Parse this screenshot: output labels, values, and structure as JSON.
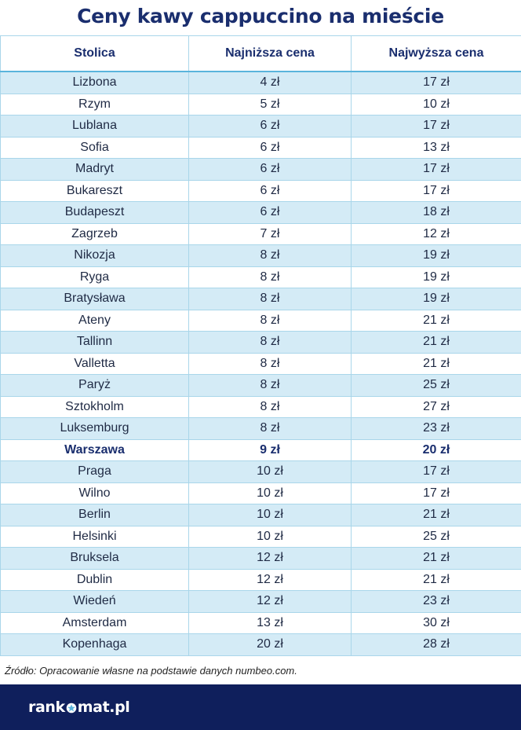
{
  "title": "Ceny kawy cappuccino na mieście",
  "table": {
    "headers": [
      "Stolica",
      "Najniższa cena",
      "Najwyższa cena"
    ],
    "rows": [
      [
        "Lizbona",
        "4 zł",
        "17 zł"
      ],
      [
        "Rzym",
        "5 zł",
        "10 zł"
      ],
      [
        "Lublana",
        "6 zł",
        "17 zł"
      ],
      [
        "Sofia",
        "6 zł",
        "13 zł"
      ],
      [
        "Madryt",
        "6 zł",
        "17 zł"
      ],
      [
        "Bukareszt",
        "6 zł",
        "17 zł"
      ],
      [
        "Budapeszt",
        "6 zł",
        "18 zł"
      ],
      [
        "Zagrzeb",
        "7 zł",
        "12 zł"
      ],
      [
        "Nikozja",
        "8 zł",
        "19 zł"
      ],
      [
        "Ryga",
        "8 zł",
        "19 zł"
      ],
      [
        "Bratysława",
        "8 zł",
        "19 zł"
      ],
      [
        "Ateny",
        "8 zł",
        "21 zł"
      ],
      [
        "Tallinn",
        "8 zł",
        "21 zł"
      ],
      [
        "Valletta",
        "8 zł",
        "21 zł"
      ],
      [
        "Paryż",
        "8 zł",
        "25 zł"
      ],
      [
        "Sztokholm",
        "8 zł",
        "27 zł"
      ],
      [
        "Luksemburg",
        "8 zł",
        "23 zł"
      ],
      [
        "Warszawa",
        "9 zł",
        "20 zł"
      ],
      [
        "Praga",
        "10 zł",
        "17 zł"
      ],
      [
        "Wilno",
        "10 zł",
        "17 zł"
      ],
      [
        "Berlin",
        "10 zł",
        "21 zł"
      ],
      [
        "Helsinki",
        "10 zł",
        "25 zł"
      ],
      [
        "Bruksela",
        "12 zł",
        "21 zł"
      ],
      [
        "Dublin",
        "12 zł",
        "21 zł"
      ],
      [
        "Wiedeń",
        "12 zł",
        "23 zł"
      ],
      [
        "Amsterdam",
        "13 zł",
        "30 zł"
      ],
      [
        "Kopenhaga",
        "20 zł",
        "28 zł"
      ]
    ],
    "highlighted_city": "Warszawa"
  },
  "source": "Źródło: Opracowanie własne na podstawie danych numbeo.com.",
  "footer": {
    "logo_left": "rank",
    "logo_right": "mat.pl",
    "logo_icon": "star-icon"
  },
  "colors": {
    "title": "#1a2e6e",
    "row_stripe": "#d4ebf6",
    "grid_line": "#a9d6ea",
    "footer_bg": "#0f1f5c",
    "logo_star": "#5ab4dc"
  }
}
